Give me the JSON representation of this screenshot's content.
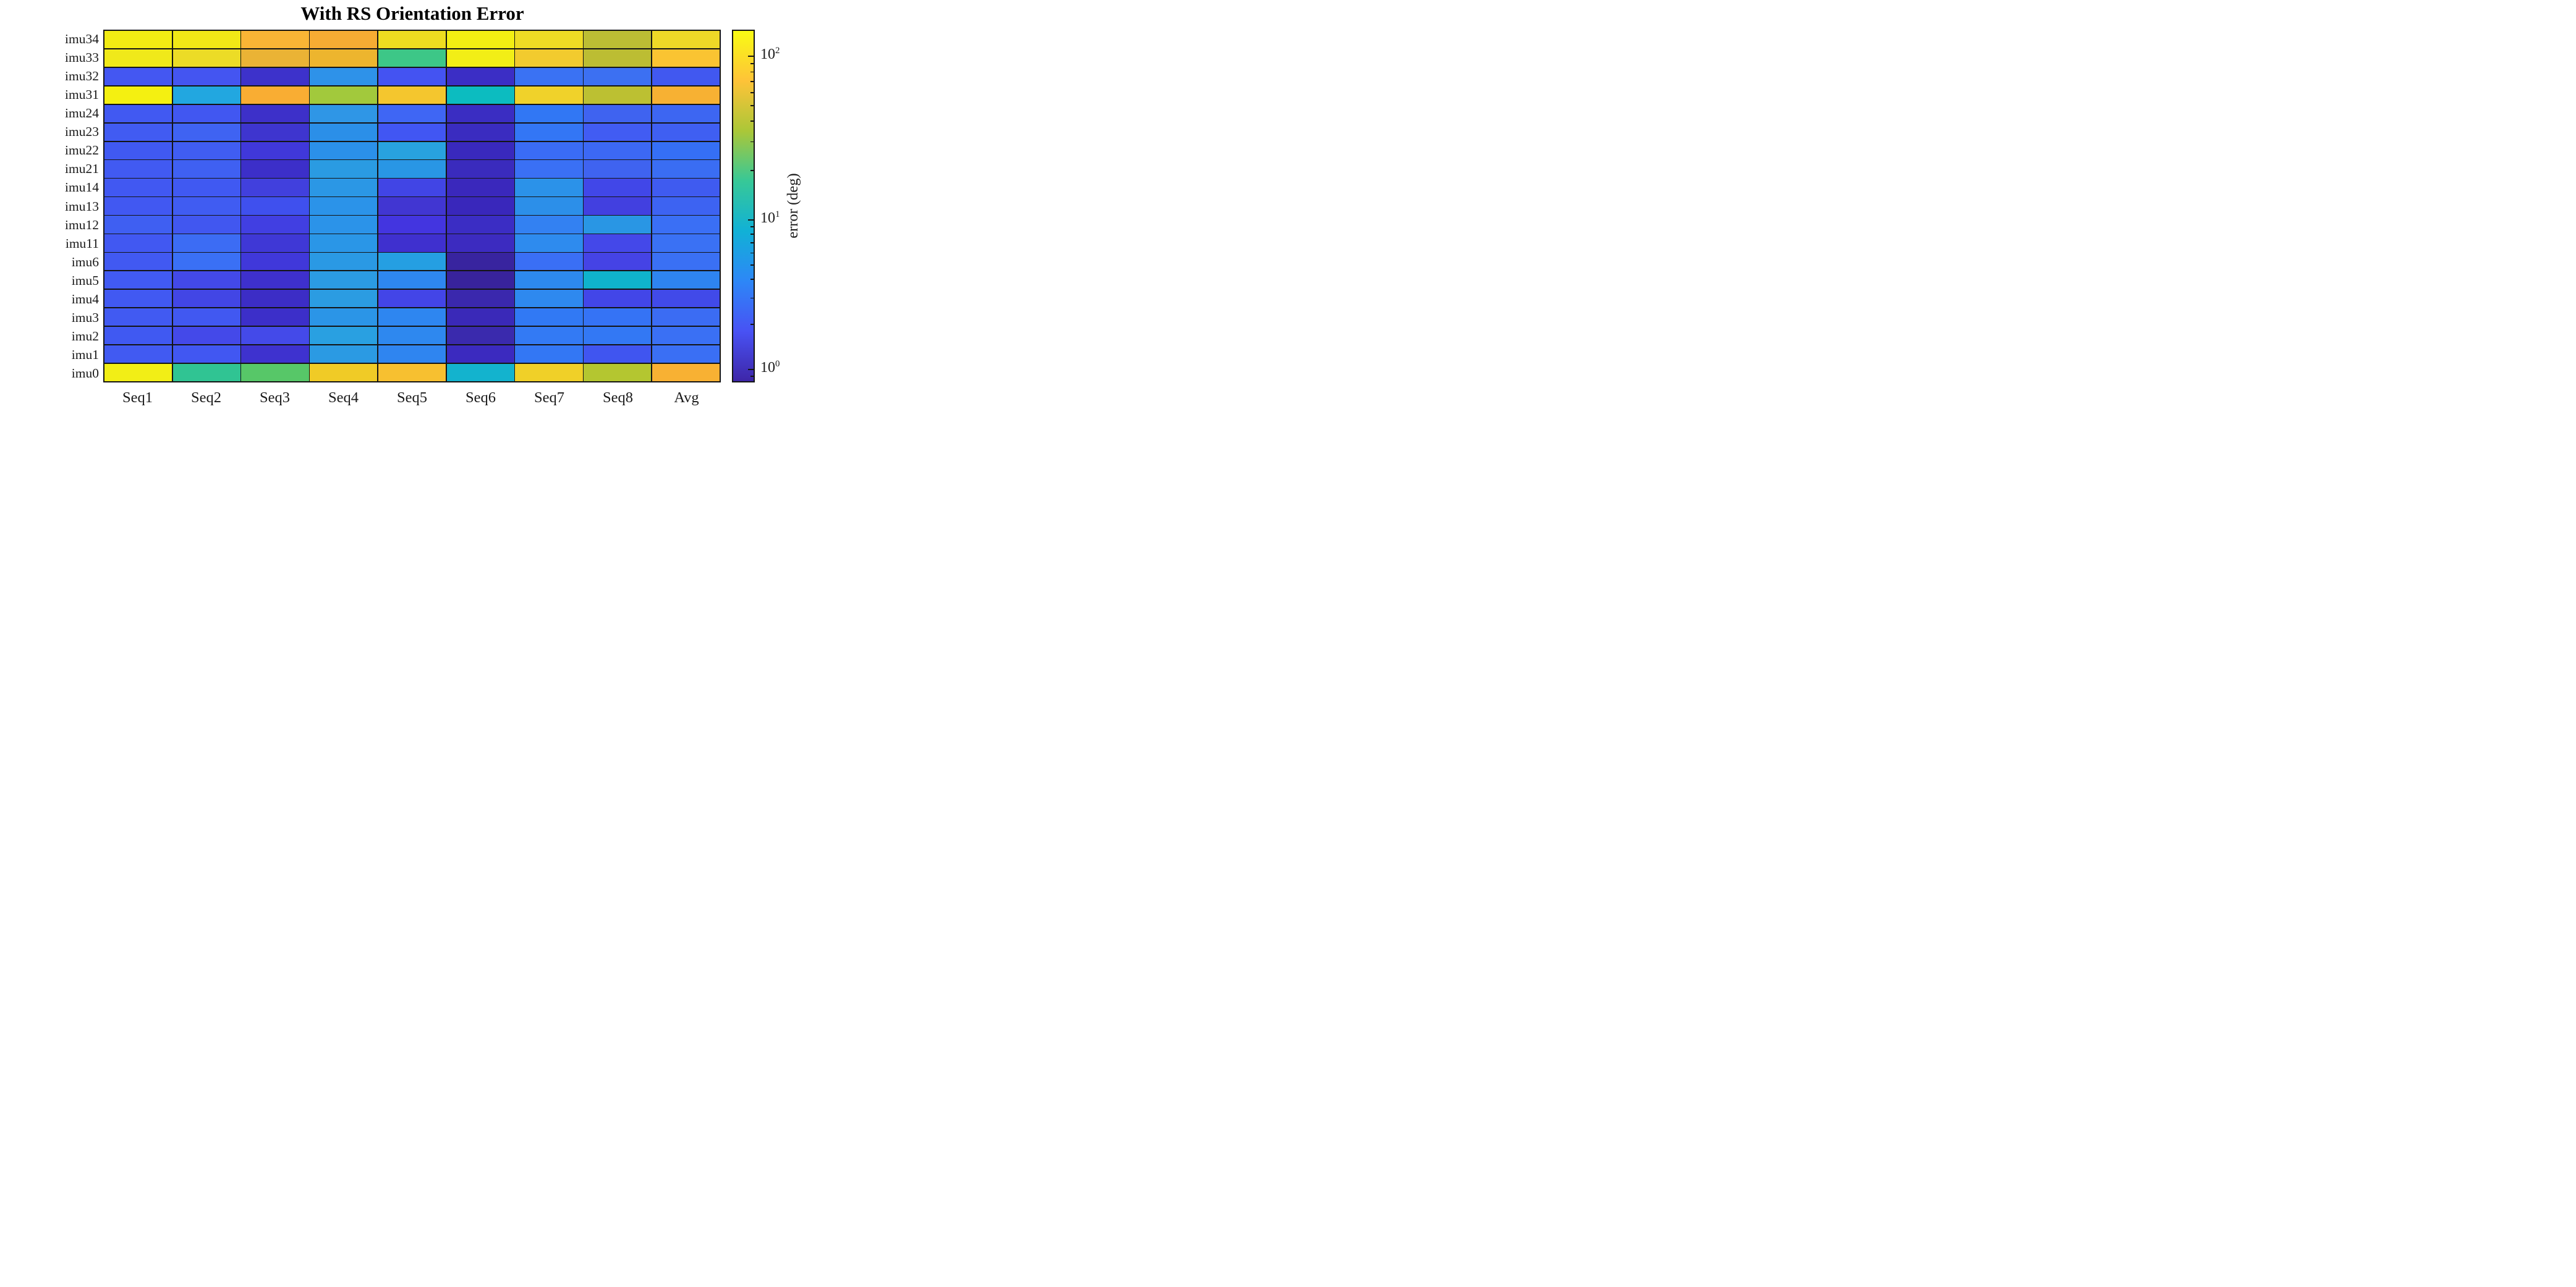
{
  "title": "With RS Orientation Error",
  "chart_data": {
    "type": "heatmap",
    "title": "With RS Orientation Error",
    "rows": [
      "imu34",
      "imu33",
      "imu32",
      "imu31",
      "imu24",
      "imu23",
      "imu22",
      "imu21",
      "imu14",
      "imu13",
      "imu12",
      "imu11",
      "imu6",
      "imu5",
      "imu4",
      "imu3",
      "imu2",
      "imu1",
      "imu0"
    ],
    "columns": [
      "Seq1",
      "Seq2",
      "Seq3",
      "Seq4",
      "Seq5",
      "Seq6",
      "Seq7",
      "Seq8",
      "Avg"
    ],
    "values_unit": "deg",
    "scale": "log10",
    "values": [
      [
        115,
        112,
        68,
        64,
        100,
        125,
        95,
        45,
        92
      ],
      [
        110,
        96,
        62,
        64,
        17,
        120,
        80,
        45,
        72
      ],
      [
        3.4,
        3.4,
        2.1,
        5.8,
        3.4,
        2.0,
        4.2,
        4.2,
        3.5
      ],
      [
        130,
        7.8,
        65,
        38,
        74,
        10.5,
        85,
        44,
        68
      ],
      [
        3.4,
        3.4,
        2.1,
        6.2,
        3.9,
        2.0,
        4.6,
        4.0,
        3.9
      ],
      [
        3.4,
        3.7,
        2.3,
        5.5,
        3.4,
        2.0,
        4.5,
        3.4,
        3.6
      ],
      [
        3.4,
        3.5,
        2.6,
        5.6,
        7.9,
        1.9,
        4.1,
        4.0,
        4.4
      ],
      [
        3.4,
        3.6,
        2.2,
        6.9,
        6.4,
        1.9,
        4.3,
        3.6,
        4.2
      ],
      [
        3.4,
        3.5,
        2.9,
        6.5,
        3.0,
        1.9,
        5.8,
        2.9,
        3.5
      ],
      [
        3.4,
        3.5,
        3.2,
        6.0,
        2.5,
        1.9,
        5.6,
        2.8,
        3.7
      ],
      [
        3.6,
        3.4,
        2.9,
        6.0,
        2.7,
        2.1,
        4.8,
        6.3,
        4.3
      ],
      [
        3.4,
        4.0,
        2.5,
        6.4,
        2.3,
        2.0,
        5.3,
        3.0,
        4.3
      ],
      [
        3.4,
        4.2,
        2.6,
        6.7,
        7.6,
        1.5,
        4.2,
        2.9,
        4.2
      ],
      [
        3.4,
        3.1,
        2.3,
        6.8,
        5.2,
        1.5,
        5.4,
        10.8,
        5.3
      ],
      [
        3.4,
        3.0,
        2.1,
        6.9,
        2.9,
        1.7,
        5.3,
        2.9,
        3.0
      ],
      [
        3.4,
        3.4,
        2.2,
        6.3,
        5.3,
        1.8,
        4.7,
        4.4,
        4.0
      ],
      [
        3.4,
        3.0,
        3.0,
        7.7,
        5.4,
        1.7,
        4.7,
        4.6,
        4.2
      ],
      [
        3.4,
        3.4,
        2.4,
        6.6,
        5.3,
        2.0,
        4.6,
        3.5,
        4.2
      ],
      [
        122,
        16,
        22,
        84,
        75,
        11,
        85,
        42,
        68
      ]
    ],
    "cell_colors": [
      [
        "#f2ec13",
        "#f1e816",
        "#f9b535",
        "#f6ac33",
        "#eedd20",
        "#f3ef12",
        "#eedc24",
        "#bcbd34",
        "#eed827"
      ],
      [
        "#f0e91a",
        "#ecdc26",
        "#eab335",
        "#edb52e",
        "#3dc787",
        "#f2ee16",
        "#f2cb2e",
        "#bcbd33",
        "#fac432"
      ],
      [
        "#4457f2",
        "#4455f1",
        "#3d32cb",
        "#2e92e9",
        "#4453f2",
        "#3b2ec5",
        "#3a72f3",
        "#3c70f2",
        "#4158f0"
      ],
      [
        "#f4f011",
        "#22a7e0",
        "#f9ad33",
        "#a2c93c",
        "#f4c62e",
        "#0cbcc0",
        "#f0d22a",
        "#bcc032",
        "#f7b133"
      ],
      [
        "#4159f2",
        "#4157f1",
        "#3d30c9",
        "#2f96e6",
        "#3f66f4",
        "#3a2dc2",
        "#3177f4",
        "#3f63f0",
        "#3d66f2"
      ],
      [
        "#415bf2",
        "#3f63f2",
        "#3e35cf",
        "#2b8fe8",
        "#4156f3",
        "#3a2cc0",
        "#3376f5",
        "#415cf3",
        "#3f5ff2"
      ],
      [
        "#4059f2",
        "#405df2",
        "#4038da",
        "#2b90e9",
        "#28a2df",
        "#3929bd",
        "#3a6cf5",
        "#3c68f4",
        "#356ff5"
      ],
      [
        "#415af2",
        "#3f60f2",
        "#3c2fc9",
        "#2a9be2",
        "#2996e5",
        "#3a2bbd",
        "#3a70f5",
        "#3f63f0",
        "#3a6df3"
      ],
      [
        "#4158f2",
        "#4059f2",
        "#4140dd",
        "#2b97e5",
        "#4145e5",
        "#3a28bc",
        "#2b92e9",
        "#4147e8",
        "#3f5bf0"
      ],
      [
        "#4158f2",
        "#405cf2",
        "#3f50ee",
        "#2b93e9",
        "#4136d2",
        "#3927bb",
        "#2c8fe9",
        "#4240e0",
        "#3d63f2"
      ],
      [
        "#3f5ff2",
        "#4157f0",
        "#413fe2",
        "#2b93e9",
        "#4335e0",
        "#3b2dc4",
        "#3381f2",
        "#2996e4",
        "#3a6ff5"
      ],
      [
        "#4158f2",
        "#3c6cf4",
        "#3f38d6",
        "#2a96e7",
        "#3f30cf",
        "#3c2bc0",
        "#2e8bee",
        "#4448e9",
        "#3a71f4"
      ],
      [
        "#4159f2",
        "#3a70f5",
        "#4038da",
        "#2a99e4",
        "#259fe2",
        "#38249f",
        "#3a6ff5",
        "#4543e5",
        "#3a70f4"
      ],
      [
        "#415af2",
        "#4349e8",
        "#3e30cd",
        "#2b9be3",
        "#2e87f0",
        "#38239c",
        "#2d89ef",
        "#0fb3cc",
        "#2e84f0"
      ],
      [
        "#4159f2",
        "#4246e5",
        "#3c2dc6",
        "#2b9ce2",
        "#4345e7",
        "#3a28ad",
        "#2e89ef",
        "#4246e8",
        "#414ae9"
      ],
      [
        "#415af2",
        "#4158f1",
        "#3c2fc9",
        "#2b95e7",
        "#2e86f0",
        "#3a29b8",
        "#3179f4",
        "#3573f5",
        "#3b6cf3"
      ],
      [
        "#4059f2",
        "#4449e9",
        "#444ae9",
        "#29a0e1",
        "#2e88ef",
        "#3a2aad",
        "#337af4",
        "#3378f4",
        "#3a70f4"
      ],
      [
        "#415af2",
        "#4157f2",
        "#3e32cf",
        "#2b9ae3",
        "#2f85f0",
        "#3b2abf",
        "#3377f4",
        "#4055f0",
        "#3a6ff4"
      ],
      [
        "#f2ee16",
        "#30c493",
        "#57c768",
        "#f0cb26",
        "#f7c030",
        "#13b3ce",
        "#f0d028",
        "#b4c630",
        "#f8b133"
      ]
    ],
    "colorbar": {
      "label": "error (deg)",
      "scale": "log",
      "ticks": [
        "10^0",
        "10^1",
        "10^2"
      ],
      "range": [
        0.8,
        140
      ],
      "colormap": "parula",
      "gradient_bottom_to_top": [
        "#3e26a8",
        "#4852f4",
        "#2d87f7",
        "#11b1d6",
        "#37c897",
        "#abc738",
        "#fec338",
        "#f9fb14"
      ]
    },
    "layout_hints": {
      "grid": "on",
      "legend": "colorbar-right"
    }
  }
}
